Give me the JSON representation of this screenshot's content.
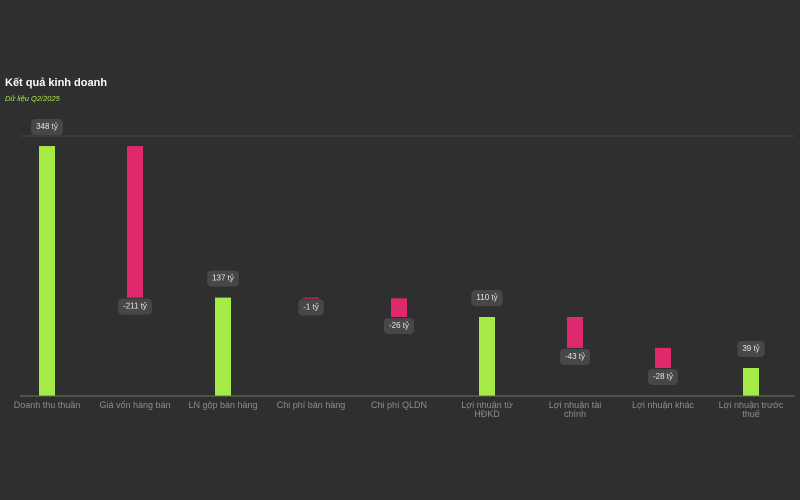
{
  "chart_data": {
    "type": "waterfall",
    "title": "Kết quả kinh doanh",
    "subtitle": "Dữ liệu Q2/2025",
    "categories": [
      "Doanh thu thuần",
      "Giá vốn hàng bán",
      "LN gộp bán hàng",
      "Chi phí bán hàng",
      "Chi phí QLDN",
      "Lợi nhuận từ HĐKD",
      "Lợi nhuận tài chính",
      "Lợi nhuận khác",
      "Lợi nhuận trước thuế"
    ],
    "values": [
      348,
      -211,
      137,
      -1,
      -26,
      110,
      -43,
      -28,
      39
    ],
    "value_labels": [
      "348 tỷ",
      "-211 tỷ",
      "137 tỷ",
      "-1 tỷ",
      "-26 tỷ",
      "110 tỷ",
      "-43 tỷ",
      "-28 tỷ",
      "39 tỷ"
    ],
    "positive_color": "#a6ea48",
    "negative_color": "#e0296c",
    "ylim": [
      0,
      362
    ]
  }
}
